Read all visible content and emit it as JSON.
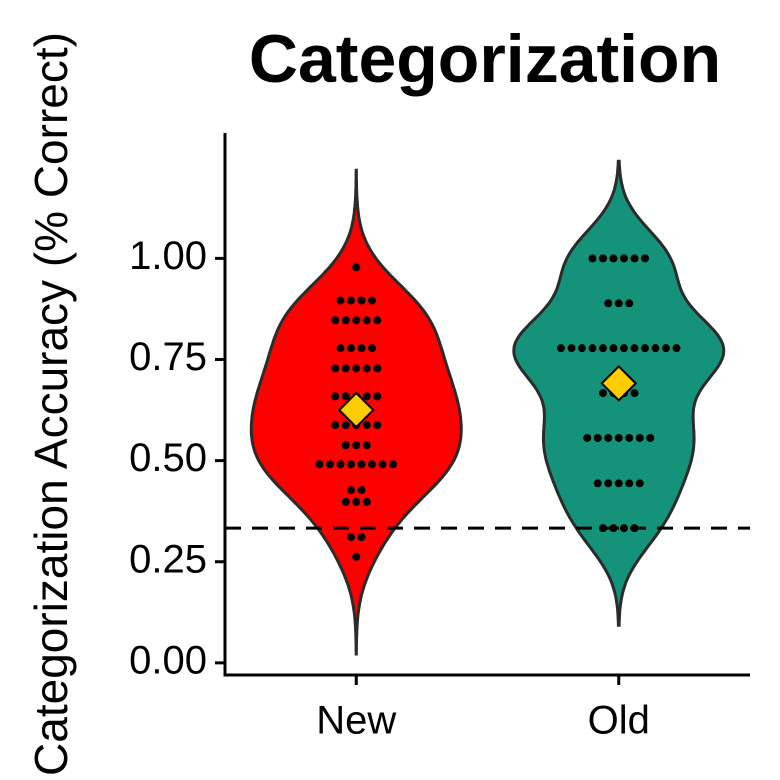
{
  "chart_data": {
    "type": "violin",
    "title": "Categorization",
    "y_label": "Categorization Accuracy (% Correct)",
    "groups": [
      {
        "name": "New",
        "color": "#ff0000",
        "points": [
          0.978,
          0.896,
          0.896,
          0.896,
          0.896,
          0.847,
          0.847,
          0.847,
          0.847,
          0.847,
          0.778,
          0.778,
          0.778,
          0.778,
          0.728,
          0.728,
          0.728,
          0.728,
          0.728,
          0.659,
          0.659,
          0.659,
          0.659,
          0.659,
          0.63,
          0.63,
          0.63,
          0.588,
          0.588,
          0.588,
          0.588,
          0.588,
          0.538,
          0.538,
          0.538,
          0.491,
          0.491,
          0.491,
          0.491,
          0.491,
          0.491,
          0.491,
          0.491,
          0.427,
          0.427,
          0.398,
          0.398,
          0.398,
          0.311,
          0.311,
          0.262
        ],
        "mean": 0.625
      },
      {
        "name": "Old",
        "color": "#15937a",
        "points": [
          1.0,
          1.0,
          1.0,
          1.0,
          1.0,
          1.0,
          0.889,
          0.889,
          0.889,
          0.778,
          0.778,
          0.778,
          0.778,
          0.778,
          0.778,
          0.778,
          0.778,
          0.778,
          0.778,
          0.778,
          0.778,
          0.667,
          0.667,
          0.667,
          0.667,
          0.556,
          0.556,
          0.556,
          0.556,
          0.556,
          0.556,
          0.556,
          0.444,
          0.444,
          0.444,
          0.444,
          0.444,
          0.333,
          0.333,
          0.333,
          0.333
        ],
        "mean": 0.691
      }
    ],
    "mean_color": "#ffcc00",
    "reference_line": 0.333,
    "ylim": [
      -0.03,
      1.31
    ],
    "yticks": [
      {
        "value": 0,
        "label": "0.00"
      },
      0.25,
      {
        "value": 0.5,
        "label": "0.50"
      },
      0.75,
      {
        "value": 1,
        "label": "1.00"
      }
    ]
  }
}
